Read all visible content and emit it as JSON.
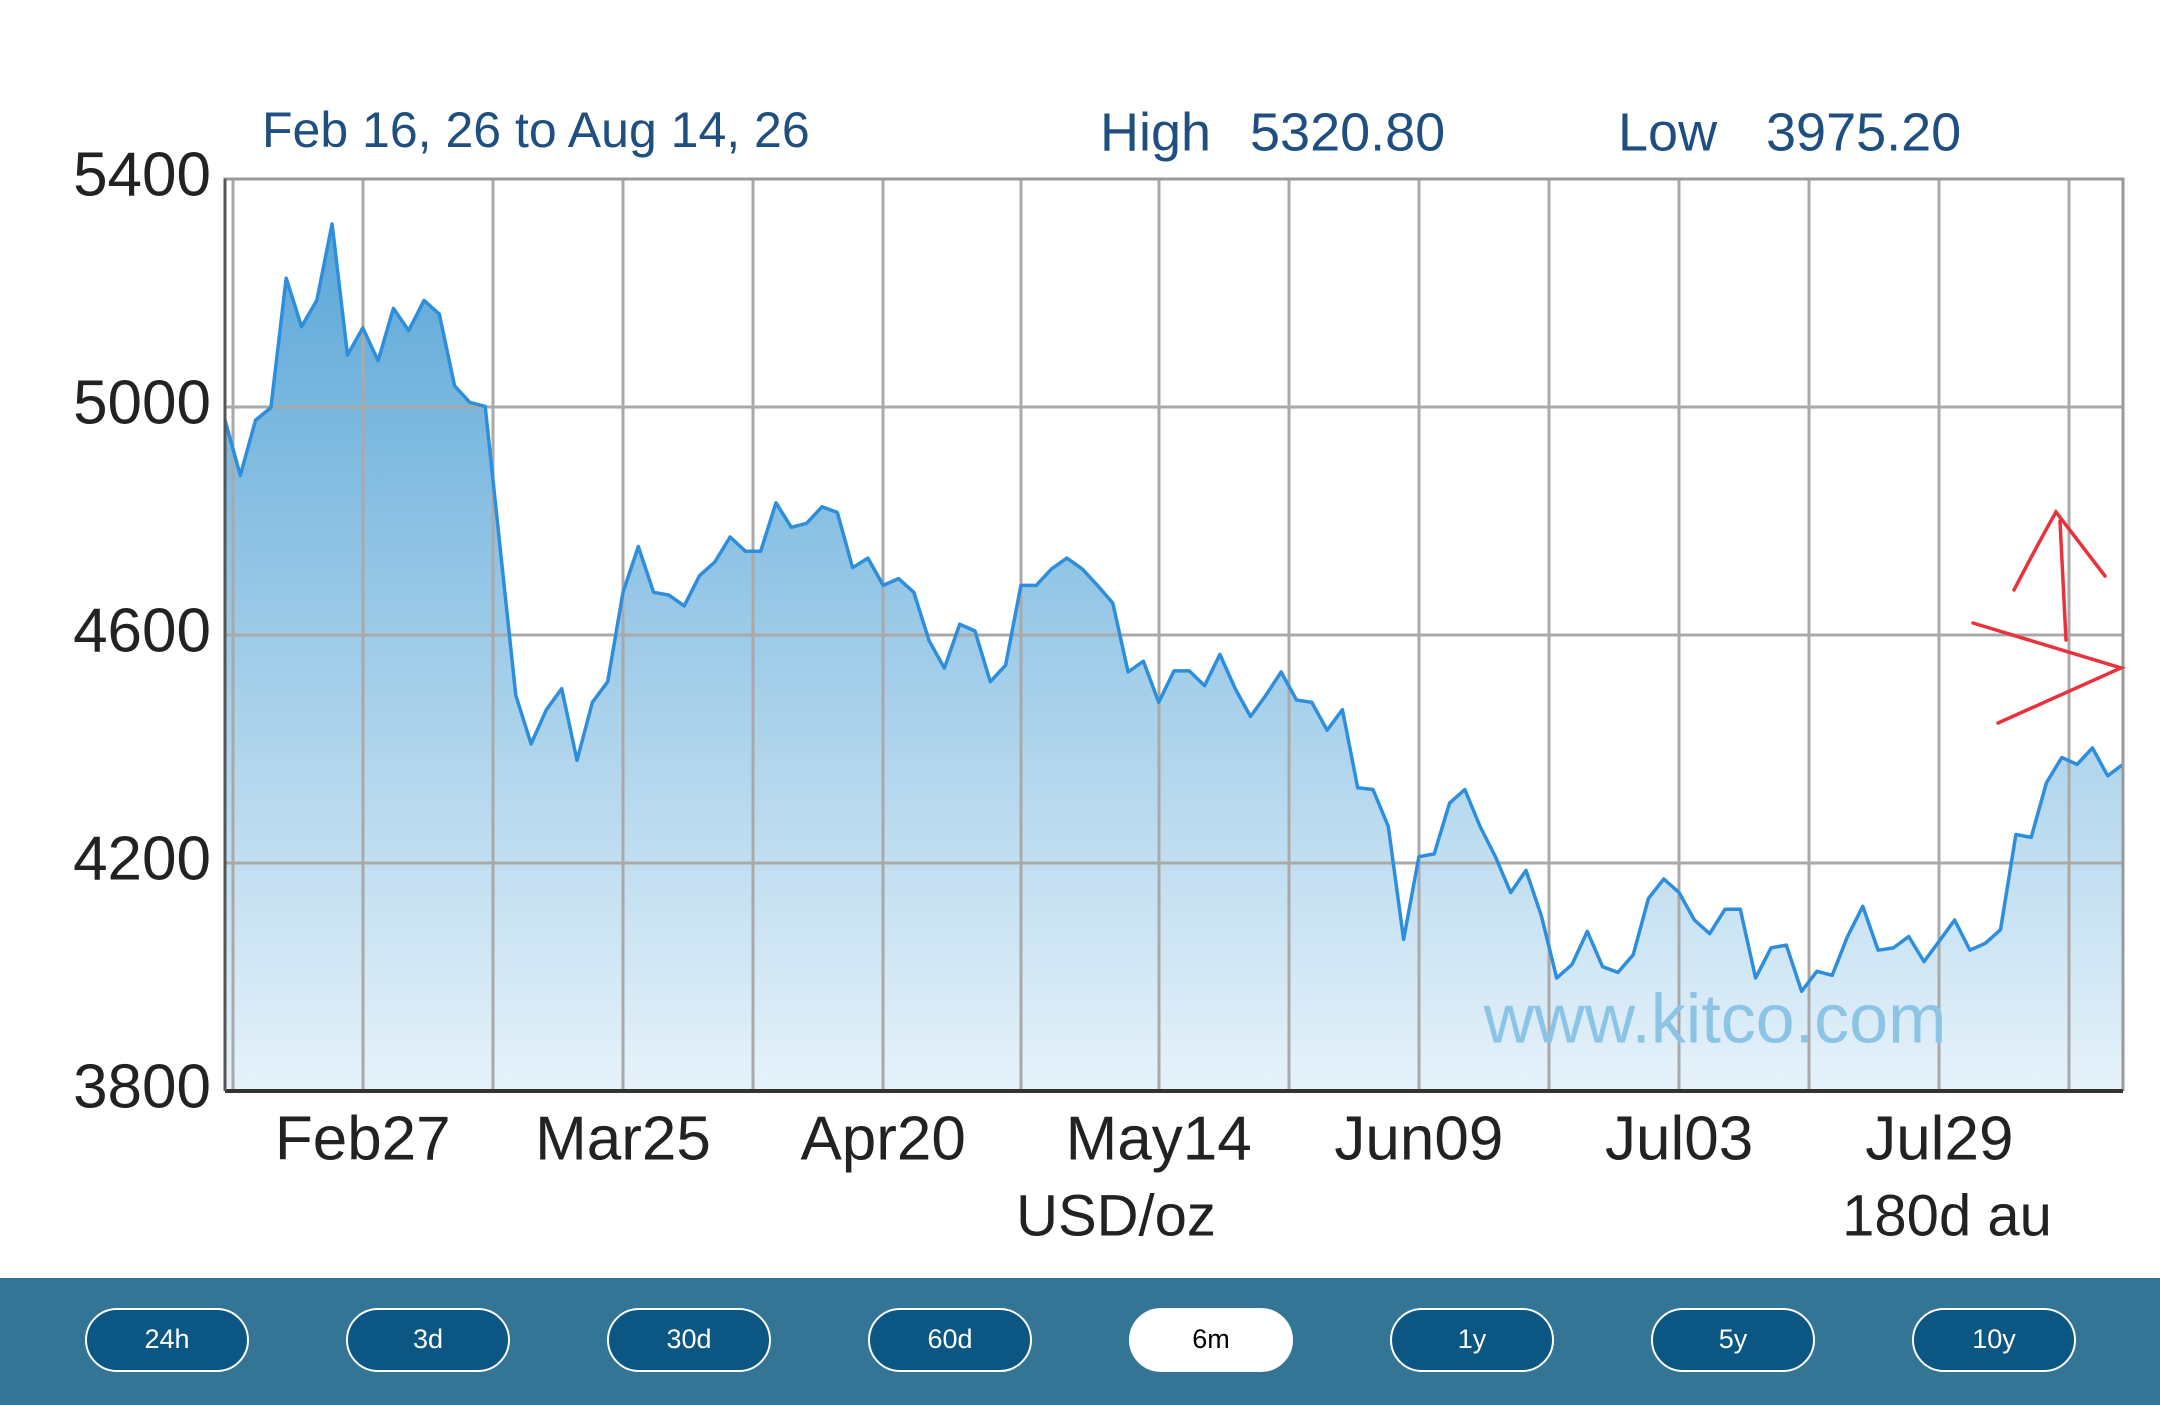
{
  "chart_data": {
    "type": "area",
    "subtitle": "Feb 16, 26 to Aug 14, 26",
    "high_label": "High",
    "high_value": "5320.80",
    "low_label": "Low",
    "low_value": "3975.20",
    "x_label": "USD/oz",
    "period_label": "180d au",
    "watermark": "www.kitco.com",
    "color": "#2e8ede",
    "grid": true,
    "ylim": [
      3800,
      5400
    ],
    "yticks": [
      3800,
      4200,
      4600,
      5000,
      5400
    ],
    "categories": [
      null,
      null,
      null,
      null,
      null,
      null,
      null,
      null,
      null,
      "Feb27",
      null,
      null,
      null,
      null,
      null,
      null,
      null,
      null,
      null,
      null,
      null,
      null,
      null,
      null,
      null,
      null,
      "Mar25",
      null,
      null,
      null,
      null,
      null,
      null,
      null,
      null,
      null,
      null,
      null,
      null,
      null,
      null,
      null,
      null,
      "Apr20",
      null,
      null,
      null,
      null,
      null,
      null,
      null,
      null,
      null,
      null,
      null,
      null,
      null,
      null,
      null,
      null,
      null,
      "May14",
      null,
      null,
      null,
      null,
      null,
      null,
      null,
      null,
      null,
      null,
      null,
      null,
      null,
      null,
      null,
      null,
      "Jun09",
      null,
      null,
      null,
      null,
      null,
      null,
      null,
      null,
      null,
      null,
      null,
      null,
      null,
      null,
      null,
      null,
      "Jul03",
      null,
      null,
      null,
      null,
      null,
      null,
      null,
      null,
      null,
      null,
      null,
      null,
      null,
      null,
      null,
      null,
      "Jul29",
      null,
      null,
      null,
      null,
      null,
      null,
      null,
      null,
      null,
      null,
      null,
      null
    ],
    "values": [
      4977,
      4880,
      4977,
      4999,
      5226,
      5141,
      5187,
      5321,
      5091,
      5139,
      5081,
      5173,
      5134,
      5187,
      5163,
      5037,
      5008,
      5001,
      4747,
      4494,
      4409,
      4469,
      4506,
      4380,
      4482,
      4518,
      4675,
      4755,
      4675,
      4670,
      4651,
      4704,
      4728,
      4772,
      4747,
      4747,
      4832,
      4789,
      4796,
      4825,
      4815,
      4718,
      4735,
      4687,
      4699,
      4675,
      4590,
      4542,
      4619,
      4607,
      4518,
      4547,
      4687,
      4687,
      4716,
      4735,
      4716,
      4687,
      4656,
      4535,
      4554,
      4482,
      4537,
      4537,
      4511,
      4566,
      4506,
      4457,
      4494,
      4535,
      4486,
      4482,
      4433,
      4469,
      4332,
      4329,
      4264,
      4066,
      4211,
      4216,
      4305,
      4329,
      4264,
      4211,
      4148,
      4187,
      4107,
      3998,
      4022,
      4080,
      4018,
      4008,
      4039,
      4138,
      4172,
      4148,
      4100,
      4076,
      4119,
      4119,
      3998,
      4051,
      4056,
      3975,
      4010,
      4003,
      4071,
      4124,
      4047,
      4051,
      4071,
      4027,
      4063,
      4100,
      4047,
      4059,
      4083,
      4250,
      4245,
      4341,
      4385,
      4373,
      4402,
      4353,
      4373
    ]
  },
  "range_buttons": {
    "options": [
      "24h",
      "3d",
      "30d",
      "60d",
      "6m",
      "1y",
      "5y",
      "10y"
    ],
    "selected": 4
  }
}
